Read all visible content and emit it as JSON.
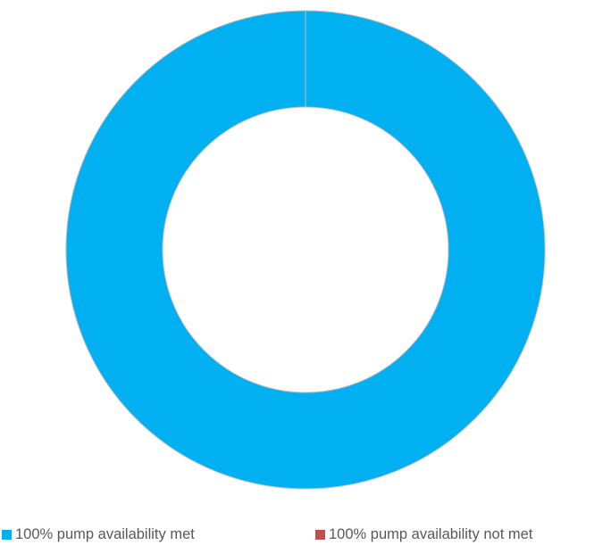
{
  "chart_data": {
    "type": "pie",
    "donut": true,
    "title": "",
    "categories": [
      "100% pump availability met",
      "100% pump availability not met"
    ],
    "values": [
      100,
      0
    ],
    "colors": [
      "#00B0F0",
      "#C0504D"
    ],
    "legend": "bottom"
  }
}
